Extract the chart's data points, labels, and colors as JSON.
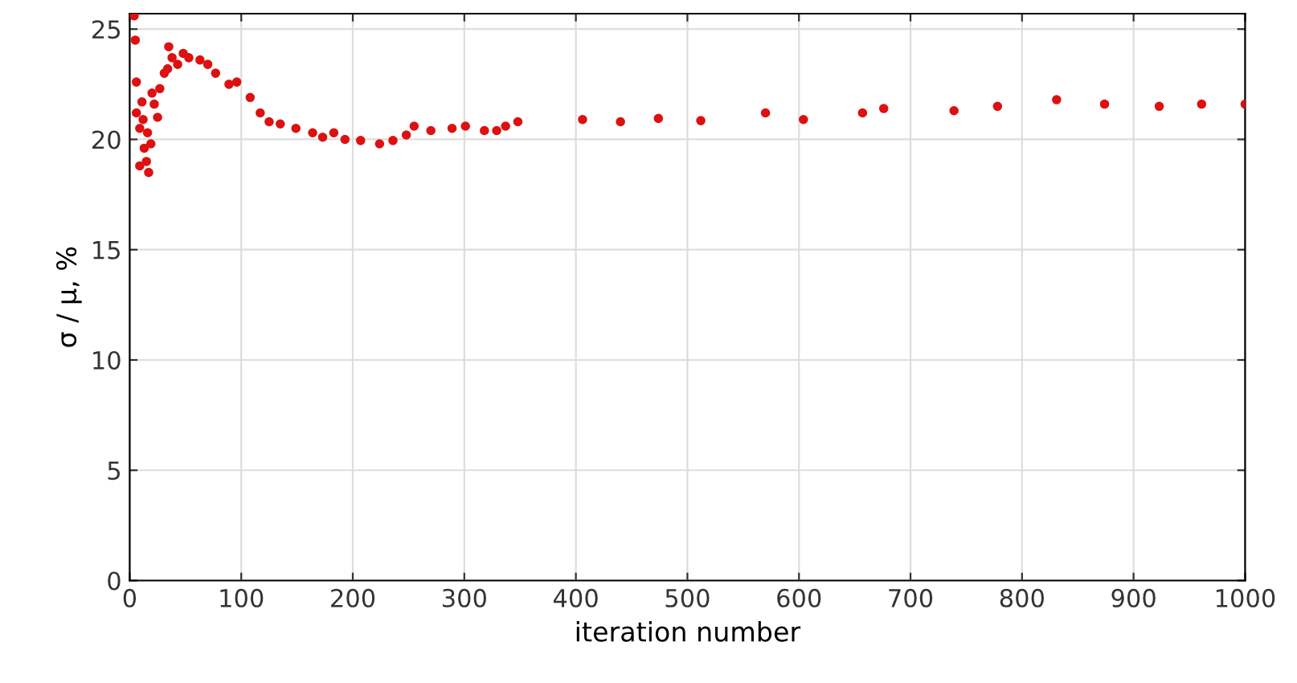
{
  "chart_data": {
    "type": "scatter",
    "xlabel": "iteration number",
    "ylabel": "σ / μ, %",
    "xlim": [
      0,
      1000
    ],
    "ylim": [
      0,
      25.7
    ],
    "xticks": [
      0,
      100,
      200,
      300,
      400,
      500,
      600,
      700,
      800,
      900,
      1000
    ],
    "yticks": [
      0,
      5,
      10,
      15,
      20,
      25
    ],
    "grid": true,
    "marker": "circle",
    "series": [
      {
        "color": "#dd1111",
        "x": [
          4,
          5,
          6,
          6,
          9,
          9,
          11,
          12,
          13,
          15,
          16,
          17,
          19,
          20,
          22,
          25,
          27,
          31,
          34,
          35,
          38,
          43,
          48,
          53,
          63,
          70,
          77,
          89,
          96,
          108,
          117,
          125,
          135,
          149,
          164,
          173,
          183,
          193,
          207,
          224,
          236,
          248,
          255,
          270,
          289,
          301,
          318,
          329,
          337,
          348,
          406,
          440,
          474,
          512,
          570,
          604,
          657,
          676,
          739,
          778,
          831,
          874,
          923,
          961,
          1000
        ],
        "values": [
          25.6,
          24.5,
          22.6,
          21.2,
          20.5,
          18.8,
          21.7,
          20.9,
          19.6,
          19.0,
          20.3,
          18.5,
          19.8,
          22.1,
          21.6,
          21.0,
          22.3,
          23.0,
          23.2,
          24.2,
          23.7,
          23.4,
          23.9,
          23.7,
          23.6,
          23.4,
          23.0,
          22.5,
          22.6,
          21.9,
          21.2,
          20.8,
          20.7,
          20.5,
          20.3,
          20.1,
          20.3,
          20.0,
          19.95,
          19.8,
          19.95,
          20.2,
          20.6,
          20.4,
          20.5,
          20.6,
          20.4,
          20.4,
          20.6,
          20.8,
          20.9,
          20.8,
          20.95,
          20.85,
          21.2,
          20.9,
          21.2,
          21.4,
          21.3,
          21.5,
          21.8,
          21.6,
          21.5,
          21.6,
          21.6
        ]
      }
    ]
  }
}
